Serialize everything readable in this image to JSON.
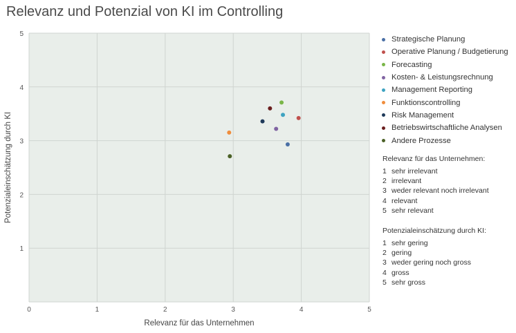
{
  "title": "Relevanz und Potenzial von KI im Controlling",
  "chart_data": {
    "type": "scatter",
    "xlabel": "Relevanz für das Unternehmen",
    "ylabel": "Potenzialeinschätzung durch KI",
    "xlim": [
      0,
      5
    ],
    "ylim": [
      0,
      5
    ],
    "x_ticks": [
      "0",
      "1",
      "2",
      "3",
      "4",
      "5"
    ],
    "y_ticks": [
      "1",
      "2",
      "3",
      "4",
      "5"
    ],
    "grid": true,
    "legend_position": "right",
    "series": [
      {
        "name": "Strategische Planung",
        "color": "#4a6fa5",
        "x": 3.8,
        "y": 2.93
      },
      {
        "name": "Operative Planung / Budgetierung",
        "color": "#c0504d",
        "x": 3.96,
        "y": 3.42
      },
      {
        "name": "Forecasting",
        "color": "#7ab648",
        "x": 3.71,
        "y": 3.71
      },
      {
        "name": "Kosten- & Leistungsrechnung",
        "color": "#8064a2",
        "x": 3.63,
        "y": 3.22
      },
      {
        "name": "Management Reporting",
        "color": "#3ea3c1",
        "x": 3.73,
        "y": 3.48
      },
      {
        "name": "Funktionscontrolling",
        "color": "#f08d3c",
        "x": 2.94,
        "y": 3.15
      },
      {
        "name": "Risk Management",
        "color": "#1f3a5a",
        "x": 3.43,
        "y": 3.36
      },
      {
        "name": "Betriebswirtschaftliche Analysen",
        "color": "#6b1f1f",
        "x": 3.54,
        "y": 3.6
      },
      {
        "name": "Andere Prozesse",
        "color": "#4b6127",
        "x": 2.95,
        "y": 2.71
      }
    ]
  },
  "scale_relevanz": {
    "title": "Relevanz für das Unternehmen:",
    "items": [
      {
        "num": "1",
        "label": "sehr irrelevant"
      },
      {
        "num": "2",
        "label": "irrelevant"
      },
      {
        "num": "3",
        "label": "weder relevant noch irrelevant"
      },
      {
        "num": "4",
        "label": "relevant"
      },
      {
        "num": "5",
        "label": "sehr relevant"
      }
    ]
  },
  "scale_potenzial": {
    "title": "Potenzialeinschätzung durch KI:",
    "items": [
      {
        "num": "1",
        "label": "sehr gering"
      },
      {
        "num": "2",
        "label": "gering"
      },
      {
        "num": "3",
        "label": "weder gering noch gross"
      },
      {
        "num": "4",
        "label": "gross"
      },
      {
        "num": "5",
        "label": "sehr gross"
      }
    ]
  }
}
